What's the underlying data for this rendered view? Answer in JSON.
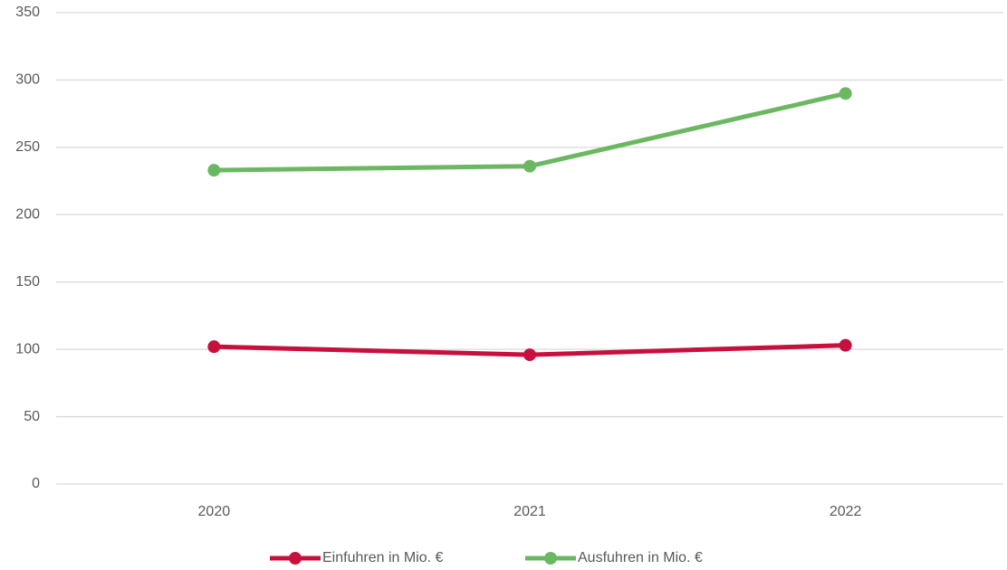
{
  "chart_data": {
    "type": "line",
    "categories": [
      "2020",
      "2021",
      "2022"
    ],
    "series": [
      {
        "name": "Einfuhren in Mio. €",
        "color": "#c8103e",
        "values": [
          102,
          96,
          103
        ]
      },
      {
        "name": "Ausfuhren in Mio. €",
        "color": "#6cb862",
        "values": [
          233,
          236,
          290
        ]
      }
    ],
    "ylim": [
      0,
      350
    ],
    "yticks": [
      0,
      50,
      100,
      150,
      200,
      250,
      300,
      350
    ],
    "grid": true,
    "legend": "bottom"
  }
}
